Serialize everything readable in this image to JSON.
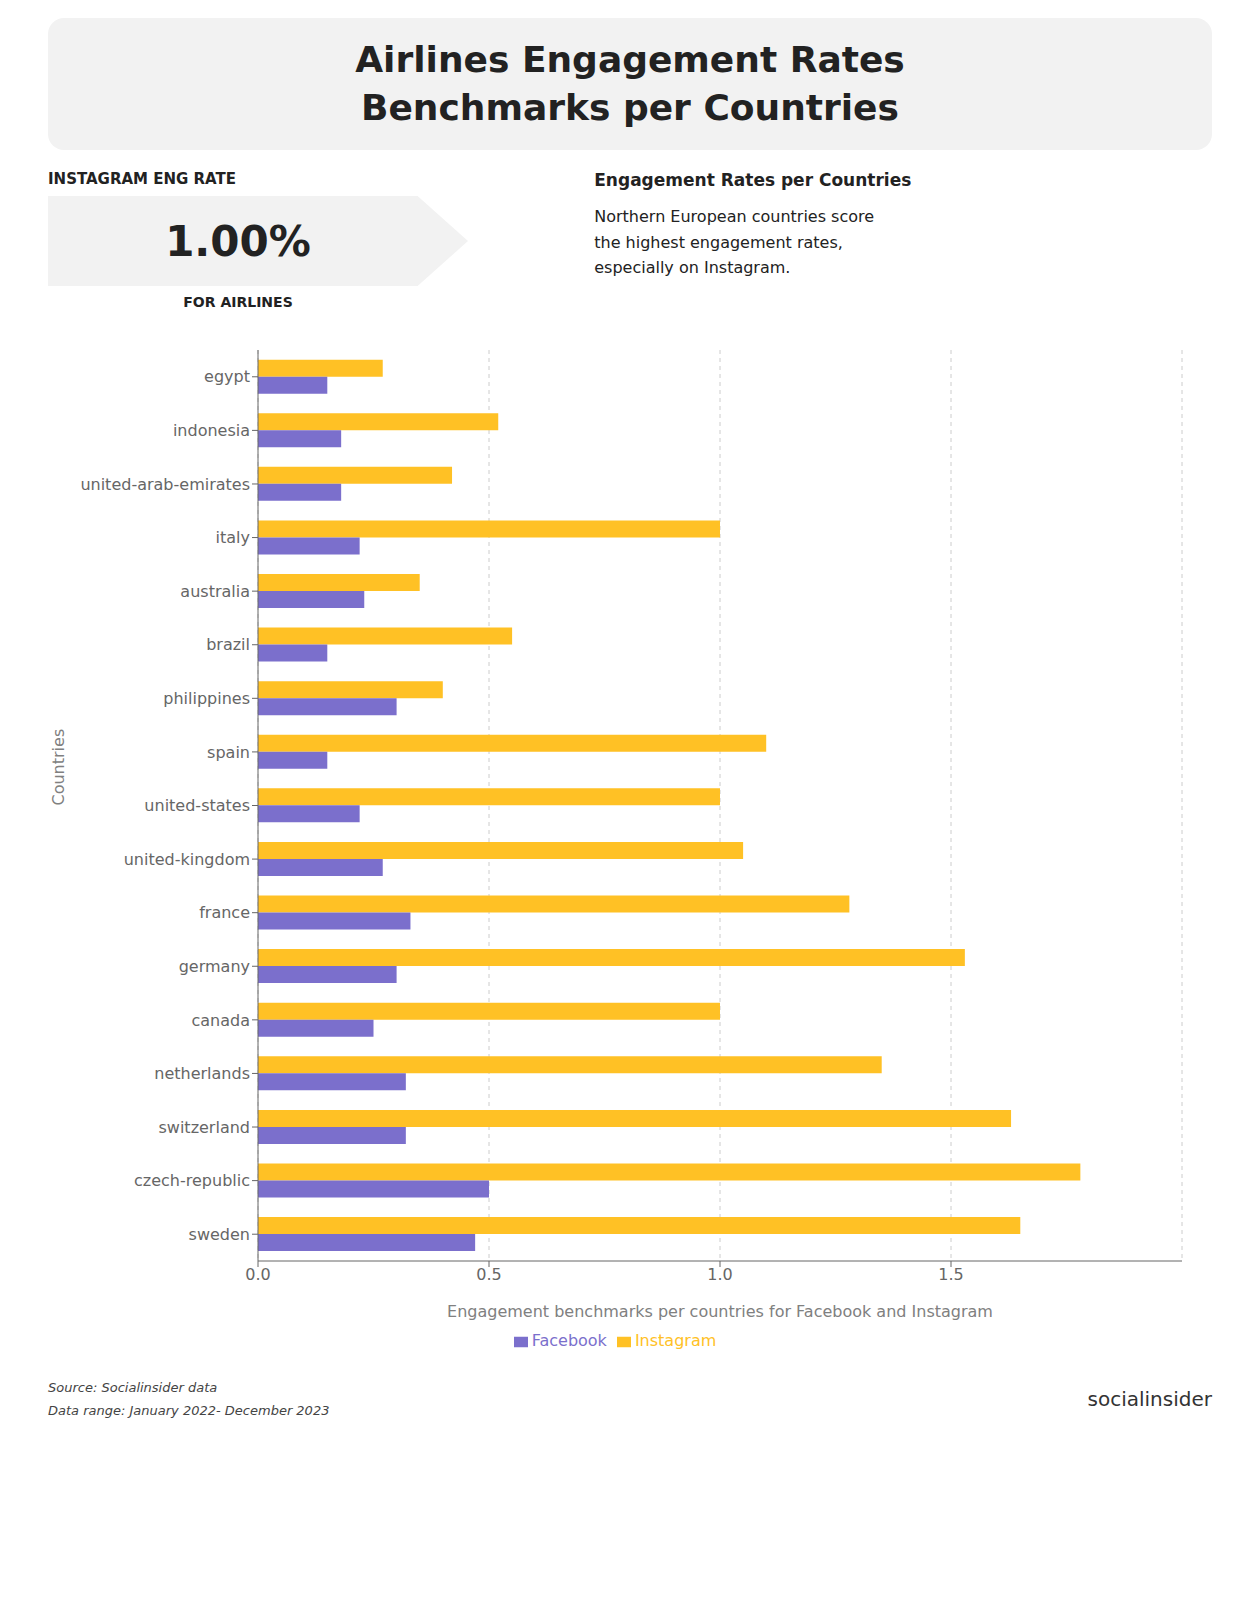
{
  "chart_data": {
    "type": "bar",
    "orientation": "horizontal",
    "title": "Airlines Engagement Rates",
    "subtitle": "Benchmarks per Countries",
    "annotations": [
      "INSTAGRAM ENG RATE",
      "1.00%",
      "FOR AIRLINES",
      "Engagement Rates per Countries",
      "Northern European countries score\nthe highest engagement rates,\nespecially on Instagram.",
      "Source: Socialinsider data\nData range: January 2022- December 2023",
      "social",
      "insider"
    ],
    "xlabel": "Engagement benchmarks per countries for Facebook and Instagram",
    "ylabel": "Countries",
    "categories": [
      "sweden",
      "czech-republic",
      "switzerland",
      "netherlands",
      "canada",
      "germany",
      "france",
      "united-kingdom",
      "united-states",
      "spain",
      "philippines",
      "brazil",
      "australia",
      "italy",
      "united-arab-emirates",
      "indonesia",
      "egypt"
    ],
    "series": [
      {
        "name": "Instagram",
        "color": "#FFC125",
        "values": [
          1.65,
          1.78,
          1.63,
          1.35,
          1.0,
          1.53,
          1.28,
          1.05,
          1.0,
          1.1,
          0.4,
          0.55,
          0.35,
          1.0,
          0.42,
          0.52,
          0.27
        ]
      },
      {
        "name": "Facebook",
        "color": "#7B6FCC",
        "values": [
          0.47,
          0.5,
          0.32,
          0.32,
          0.25,
          0.3,
          0.33,
          0.27,
          0.22,
          0.15,
          0.3,
          0.15,
          0.23,
          0.22,
          0.18,
          0.18,
          0.15
        ]
      }
    ],
    "xlim": [
      0,
      2.0
    ],
    "xticks": [
      {
        "value": 0,
        "label": "0.0"
      },
      0.5,
      {
        "value": 1,
        "label": "1.0"
      },
      1.5
    ],
    "grid": true,
    "legend": "bottom"
  }
}
